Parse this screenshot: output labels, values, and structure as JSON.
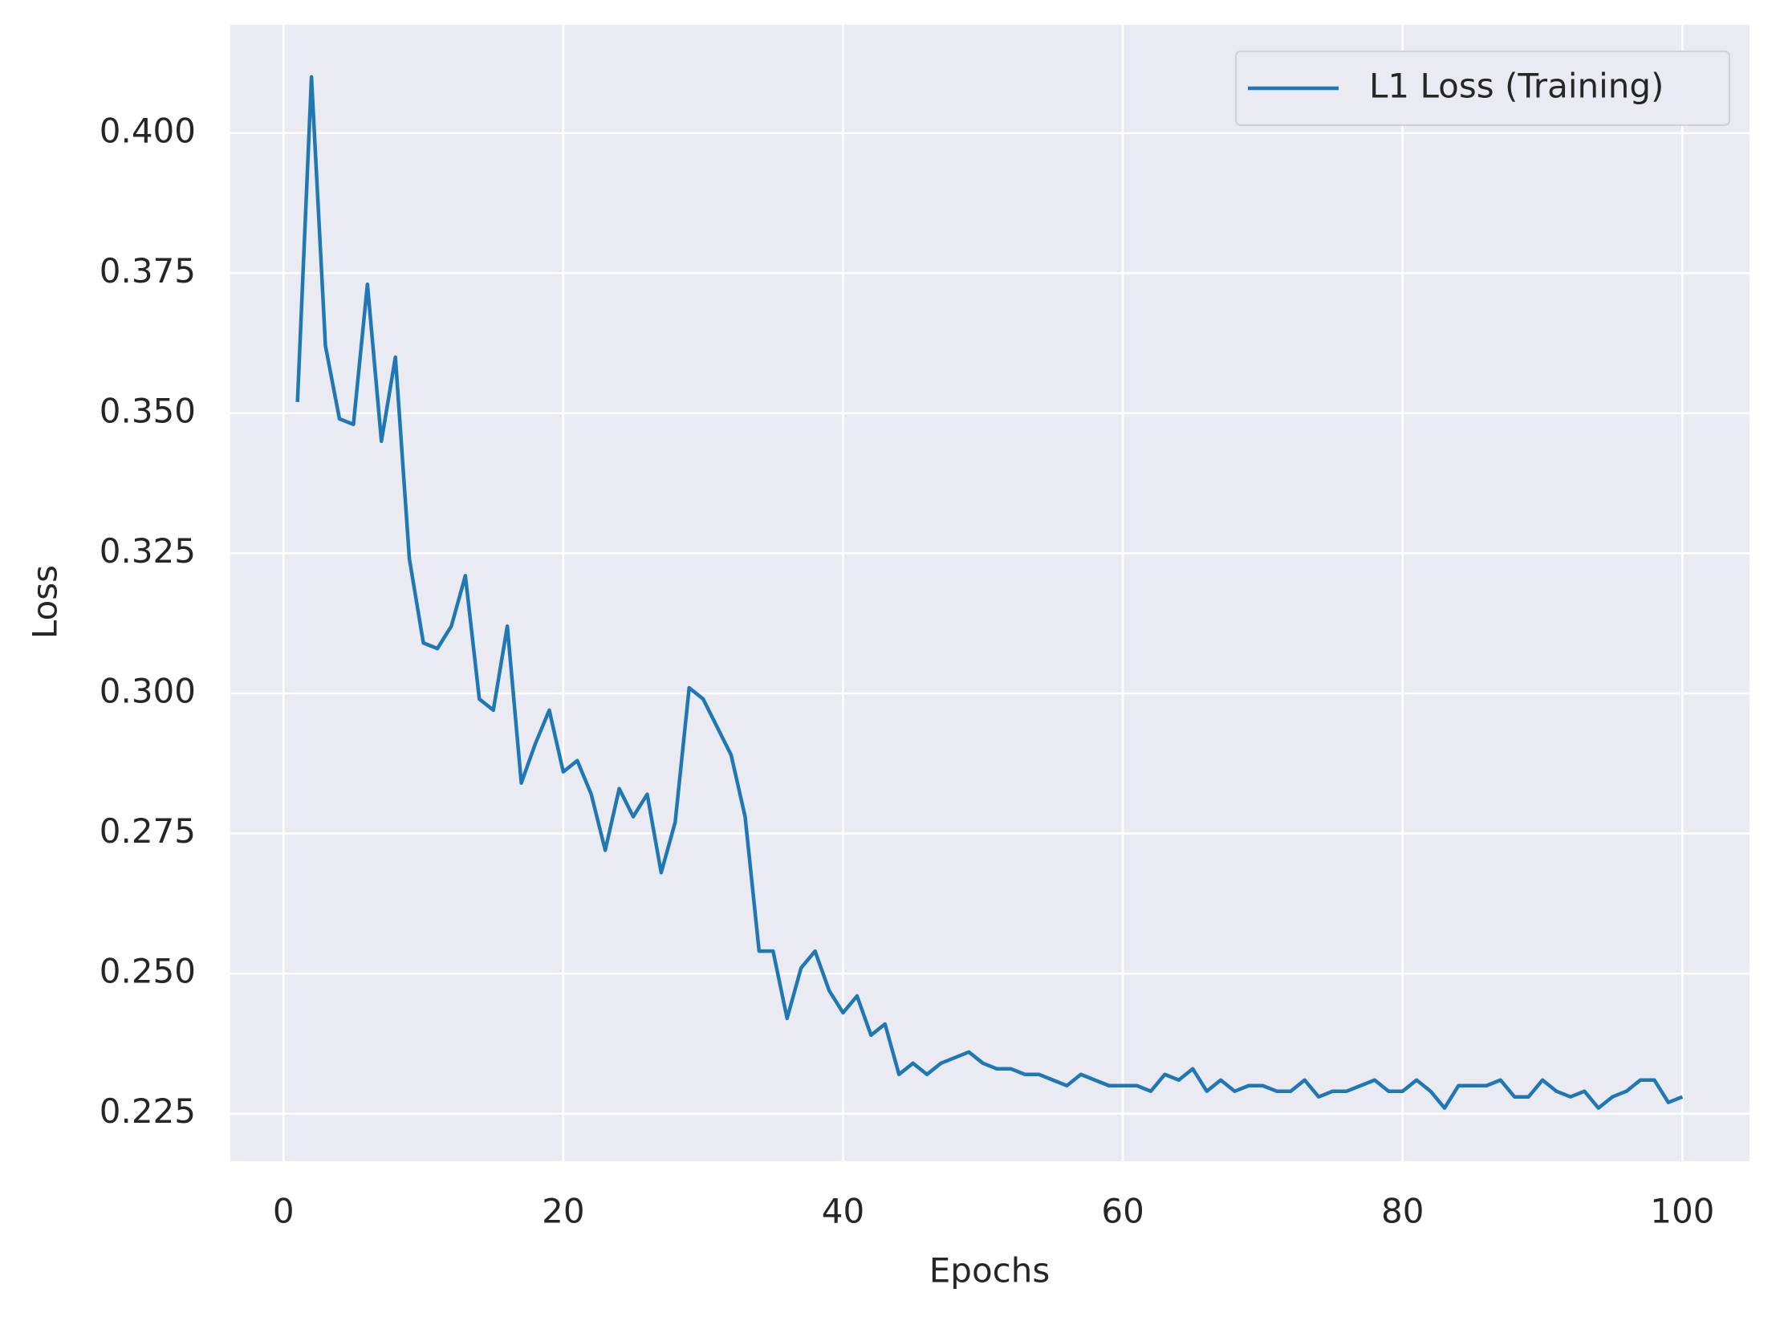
{
  "chart_data": {
    "type": "line",
    "xlabel": "Epochs",
    "ylabel": "Loss",
    "x": [
      1,
      2,
      3,
      4,
      5,
      6,
      7,
      8,
      9,
      10,
      11,
      12,
      13,
      14,
      15,
      16,
      17,
      18,
      19,
      20,
      21,
      22,
      23,
      24,
      25,
      26,
      27,
      28,
      29,
      30,
      31,
      32,
      33,
      34,
      35,
      36,
      37,
      38,
      39,
      40,
      41,
      42,
      43,
      44,
      45,
      46,
      47,
      48,
      49,
      50,
      51,
      52,
      53,
      54,
      55,
      56,
      57,
      58,
      59,
      60,
      61,
      62,
      63,
      64,
      65,
      66,
      67,
      68,
      69,
      70,
      71,
      72,
      73,
      74,
      75,
      76,
      77,
      78,
      79,
      80,
      81,
      82,
      83,
      84,
      85,
      86,
      87,
      88,
      89,
      90,
      91,
      92,
      93,
      94,
      95,
      96,
      97,
      98,
      99,
      100
    ],
    "series": [
      {
        "name": "L1 Loss (Training)",
        "color": "#1f77b4",
        "values": [
          0.352,
          0.41,
          0.362,
          0.349,
          0.348,
          0.373,
          0.345,
          0.36,
          0.324,
          0.309,
          0.308,
          0.312,
          0.321,
          0.299,
          0.297,
          0.312,
          0.284,
          0.291,
          0.297,
          0.286,
          0.288,
          0.282,
          0.272,
          0.283,
          0.278,
          0.282,
          0.268,
          0.277,
          0.301,
          0.299,
          0.294,
          0.289,
          0.278,
          0.254,
          0.254,
          0.242,
          0.251,
          0.254,
          0.247,
          0.243,
          0.246,
          0.239,
          0.241,
          0.232,
          0.234,
          0.232,
          0.234,
          0.235,
          0.236,
          0.234,
          0.233,
          0.233,
          0.232,
          0.232,
          0.231,
          0.23,
          0.232,
          0.231,
          0.23,
          0.23,
          0.23,
          0.229,
          0.232,
          0.231,
          0.233,
          0.229,
          0.231,
          0.229,
          0.23,
          0.23,
          0.229,
          0.229,
          0.231,
          0.228,
          0.229,
          0.229,
          0.23,
          0.231,
          0.229,
          0.229,
          0.231,
          0.229,
          0.226,
          0.23,
          0.23,
          0.23,
          0.231,
          0.228,
          0.228,
          0.231,
          0.229,
          0.228,
          0.229,
          0.226,
          0.228,
          0.229,
          0.231,
          0.231,
          0.227,
          0.228
        ]
      }
    ],
    "xlim": [
      -3.8,
      104.8
    ],
    "ylim": [
      0.2165,
      0.4193
    ],
    "xticks": [
      0,
      20,
      40,
      60,
      80,
      100
    ],
    "yticks": [
      {
        "value": 0.225,
        "label": "0.225"
      },
      {
        "value": 0.25,
        "label": "0.250"
      },
      {
        "value": 0.275,
        "label": "0.275"
      },
      {
        "value": 0.3,
        "label": "0.300"
      },
      {
        "value": 0.325,
        "label": "0.325"
      },
      {
        "value": 0.35,
        "label": "0.350"
      },
      {
        "value": 0.375,
        "label": "0.375"
      },
      {
        "value": 0.4,
        "label": "0.400"
      }
    ],
    "grid": true,
    "legend": "upper right"
  }
}
